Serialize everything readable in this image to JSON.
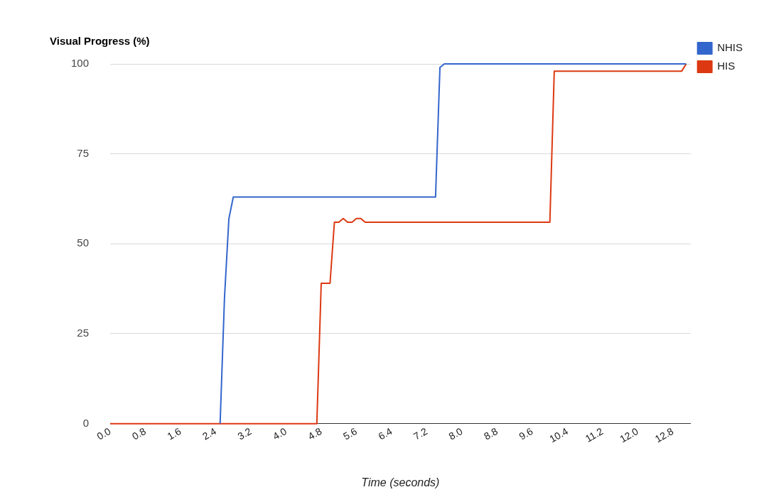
{
  "chart_data": {
    "type": "line",
    "title": "Visual Progress (%)",
    "xlabel": "Time (seconds)",
    "xlim": [
      0,
      13.2
    ],
    "xticks": [
      {
        "value": 0,
        "label": "0.0"
      },
      {
        "value": 0.8,
        "label": "0.8"
      },
      {
        "value": 1.6,
        "label": "1.6"
      },
      {
        "value": 2.4,
        "label": "2.4"
      },
      {
        "value": 3.2,
        "label": "3.2"
      },
      {
        "value": 4,
        "label": "4.0"
      },
      {
        "value": 4.8,
        "label": "4.8"
      },
      {
        "value": 5.6,
        "label": "5.6"
      },
      {
        "value": 6.4,
        "label": "6.4"
      },
      {
        "value": 7.2,
        "label": "7.2"
      },
      {
        "value": 8,
        "label": "8.0"
      },
      {
        "value": 8.8,
        "label": "8.8"
      },
      {
        "value": 9.6,
        "label": "9.6"
      },
      {
        "value": 10.4,
        "label": "10.4"
      },
      {
        "value": 11.2,
        "label": "11.2"
      },
      {
        "value": 12,
        "label": "12.0"
      },
      {
        "value": 12.8,
        "label": "12.8"
      }
    ],
    "ylim": [
      0,
      100
    ],
    "yticks": [
      0,
      25,
      50,
      75,
      100
    ],
    "grid": "y",
    "legend": "top right",
    "marker": "none",
    "line_style": "solid",
    "series": [
      {
        "name": "NHIS",
        "color": "#3366cc",
        "x": [
          2.5,
          2.6,
          2.7,
          2.8,
          7.4,
          7.5,
          7.6,
          13.1
        ],
        "values": [
          0,
          35,
          57,
          63,
          63,
          99,
          100,
          100
        ]
      },
      {
        "name": "HIS",
        "color": "#dc3912",
        "x": [
          0,
          4.7,
          4.8,
          5.0,
          5.1,
          5.2,
          5.3,
          5.4,
          5.5,
          5.6,
          5.7,
          5.8,
          10.0,
          10.1,
          13.0,
          13.1
        ],
        "values": [
          0,
          0,
          39,
          39,
          56,
          56,
          57,
          56,
          56,
          57,
          57,
          56,
          56,
          98,
          98,
          100
        ]
      }
    ]
  }
}
